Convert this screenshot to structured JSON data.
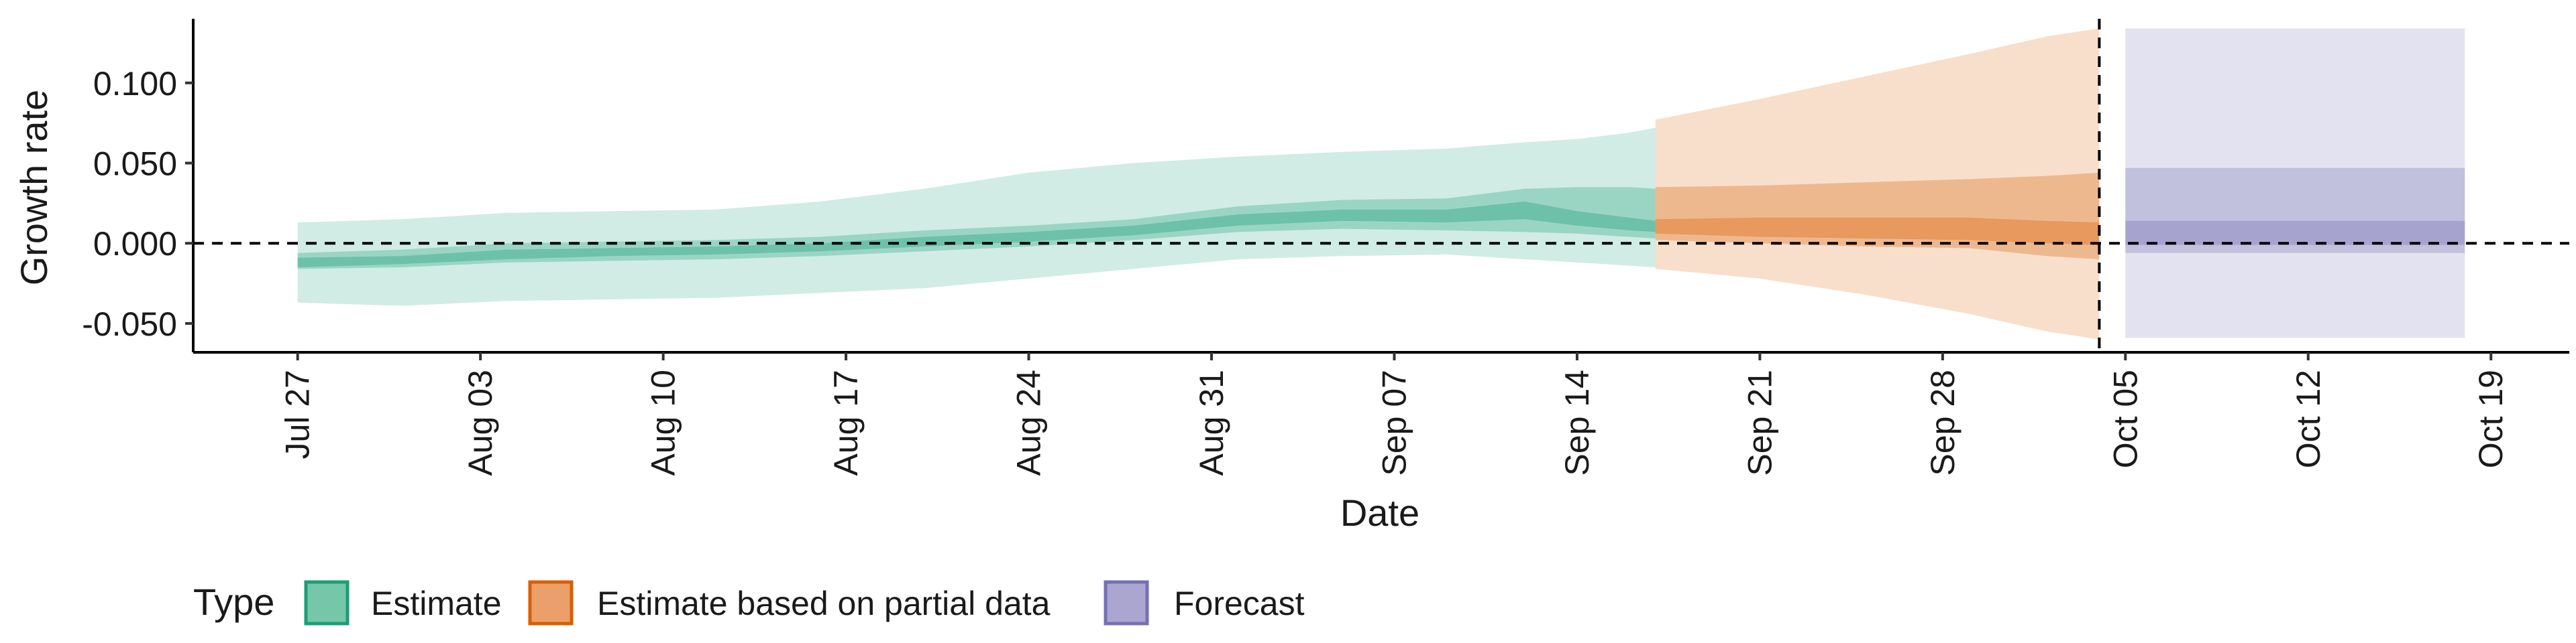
{
  "chart_data": {
    "type": "area",
    "xlabel": "Date",
    "ylabel": "Growth rate",
    "x_tick_labels": [
      "Jul 27",
      "Aug 03",
      "Aug 10",
      "Aug 17",
      "Aug 24",
      "Aug 31",
      "Sep 07",
      "Sep 14",
      "Sep 21",
      "Sep 28",
      "Oct 05",
      "Oct 12",
      "Oct 19"
    ],
    "x_tick_dates": [
      "2020-07-27",
      "2020-08-03",
      "2020-08-10",
      "2020-08-17",
      "2020-08-24",
      "2020-08-31",
      "2020-09-07",
      "2020-09-14",
      "2020-09-21",
      "2020-09-28",
      "2020-10-05",
      "2020-10-12",
      "2020-10-19"
    ],
    "y_ticks": [
      0.1,
      0.05,
      0.0,
      -0.05
    ],
    "y_tick_labels": [
      "0.100",
      "0.050",
      "0.000",
      "-0.050"
    ],
    "xlim": [
      "2020-07-23",
      "2020-10-22"
    ],
    "ylim": [
      -0.068,
      0.14
    ],
    "reference_hline": 0.0,
    "reference_vline": "2020-10-04",
    "legend": {
      "title": "Type",
      "position": "bottom",
      "items": [
        {
          "label": "Estimate",
          "fill": "#76c7a9",
          "stroke": "#1b9e77"
        },
        {
          "label": "Estimate based on partial data",
          "fill": "#eba06b",
          "stroke": "#d95f02"
        },
        {
          "label": "Forecast",
          "fill": "#aaa6d0",
          "stroke": "#7570b3"
        }
      ]
    },
    "series": [
      {
        "type_label": "Estimate",
        "color": "#1b9e77",
        "points": [
          {
            "x": "2020-07-27",
            "lo90": -0.037,
            "lo50": -0.016,
            "lo20": -0.015,
            "hi20": -0.009,
            "hi50": -0.006,
            "hi90": 0.013
          },
          {
            "x": "2020-07-31",
            "lo90": -0.039,
            "lo50": -0.015,
            "lo20": -0.013,
            "hi20": -0.008,
            "hi50": -0.004,
            "hi90": 0.015
          },
          {
            "x": "2020-08-04",
            "lo90": -0.036,
            "lo50": -0.012,
            "lo20": -0.01,
            "hi20": -0.004,
            "hi50": 0.0,
            "hi90": 0.019
          },
          {
            "x": "2020-08-08",
            "lo90": -0.035,
            "lo50": -0.011,
            "lo20": -0.008,
            "hi20": -0.003,
            "hi50": 0.001,
            "hi90": 0.02
          },
          {
            "x": "2020-08-12",
            "lo90": -0.034,
            "lo50": -0.01,
            "lo20": -0.007,
            "hi20": -0.002,
            "hi50": 0.002,
            "hi90": 0.021
          },
          {
            "x": "2020-08-16",
            "lo90": -0.031,
            "lo50": -0.008,
            "lo20": -0.005,
            "hi20": 0.0,
            "hi50": 0.004,
            "hi90": 0.026
          },
          {
            "x": "2020-08-20",
            "lo90": -0.028,
            "lo50": -0.005,
            "lo20": -0.002,
            "hi20": 0.004,
            "hi50": 0.008,
            "hi90": 0.034
          },
          {
            "x": "2020-08-24",
            "lo90": -0.022,
            "lo50": -0.002,
            "lo20": 0.001,
            "hi20": 0.007,
            "hi50": 0.011,
            "hi90": 0.044
          },
          {
            "x": "2020-08-28",
            "lo90": -0.016,
            "lo50": 0.002,
            "lo20": 0.005,
            "hi20": 0.011,
            "hi50": 0.015,
            "hi90": 0.05
          },
          {
            "x": "2020-09-01",
            "lo90": -0.01,
            "lo50": 0.007,
            "lo20": 0.011,
            "hi20": 0.018,
            "hi50": 0.023,
            "hi90": 0.054
          },
          {
            "x": "2020-09-05",
            "lo90": -0.008,
            "lo50": 0.009,
            "lo20": 0.014,
            "hi20": 0.021,
            "hi50": 0.027,
            "hi90": 0.057
          },
          {
            "x": "2020-09-09",
            "lo90": -0.007,
            "lo50": 0.008,
            "lo20": 0.013,
            "hi20": 0.021,
            "hi50": 0.028,
            "hi90": 0.059
          },
          {
            "x": "2020-09-12",
            "lo90": -0.01,
            "lo50": 0.007,
            "lo20": 0.015,
            "hi20": 0.026,
            "hi50": 0.034,
            "hi90": 0.063
          },
          {
            "x": "2020-09-14",
            "lo90": -0.012,
            "lo50": 0.006,
            "lo20": 0.011,
            "hi20": 0.02,
            "hi50": 0.035,
            "hi90": 0.065
          },
          {
            "x": "2020-09-16",
            "lo90": -0.014,
            "lo50": 0.004,
            "lo20": 0.008,
            "hi20": 0.016,
            "hi50": 0.035,
            "hi90": 0.069
          },
          {
            "x": "2020-09-17",
            "lo90": -0.015,
            "lo50": 0.003,
            "lo20": 0.007,
            "hi20": 0.014,
            "hi50": 0.034,
            "hi90": 0.072
          }
        ]
      },
      {
        "type_label": "Estimate based on partial data",
        "color": "#d95f02",
        "points": [
          {
            "x": "2020-09-17",
            "lo90": -0.016,
            "lo50": 0.002,
            "lo20": 0.006,
            "hi20": 0.015,
            "hi50": 0.035,
            "hi90": 0.077
          },
          {
            "x": "2020-09-21",
            "lo90": -0.022,
            "lo50": 0.0,
            "lo20": 0.004,
            "hi20": 0.016,
            "hi50": 0.036,
            "hi90": 0.09
          },
          {
            "x": "2020-09-25",
            "lo90": -0.032,
            "lo50": -0.002,
            "lo20": 0.003,
            "hi20": 0.016,
            "hi50": 0.038,
            "hi90": 0.104
          },
          {
            "x": "2020-09-29",
            "lo90": -0.044,
            "lo50": -0.003,
            "lo20": 0.002,
            "hi20": 0.016,
            "hi50": 0.04,
            "hi90": 0.118
          },
          {
            "x": "2020-10-02",
            "lo90": -0.055,
            "lo50": -0.008,
            "lo20": 0.0,
            "hi20": 0.014,
            "hi50": 0.042,
            "hi90": 0.129
          },
          {
            "x": "2020-10-04",
            "lo90": -0.06,
            "lo50": -0.01,
            "lo20": -0.001,
            "hi20": 0.013,
            "hi50": 0.044,
            "hi90": 0.134
          }
        ]
      },
      {
        "type_label": "Forecast",
        "color": "#7570b3",
        "points": [
          {
            "x": "2020-10-05",
            "lo90": -0.059,
            "lo50": -0.006,
            "lo20": -0.001,
            "hi20": 0.014,
            "hi50": 0.047,
            "hi90": 0.134
          },
          {
            "x": "2020-10-18",
            "lo90": -0.059,
            "lo50": -0.006,
            "lo20": -0.001,
            "hi20": 0.014,
            "hi50": 0.047,
            "hi90": 0.134
          }
        ]
      }
    ]
  }
}
